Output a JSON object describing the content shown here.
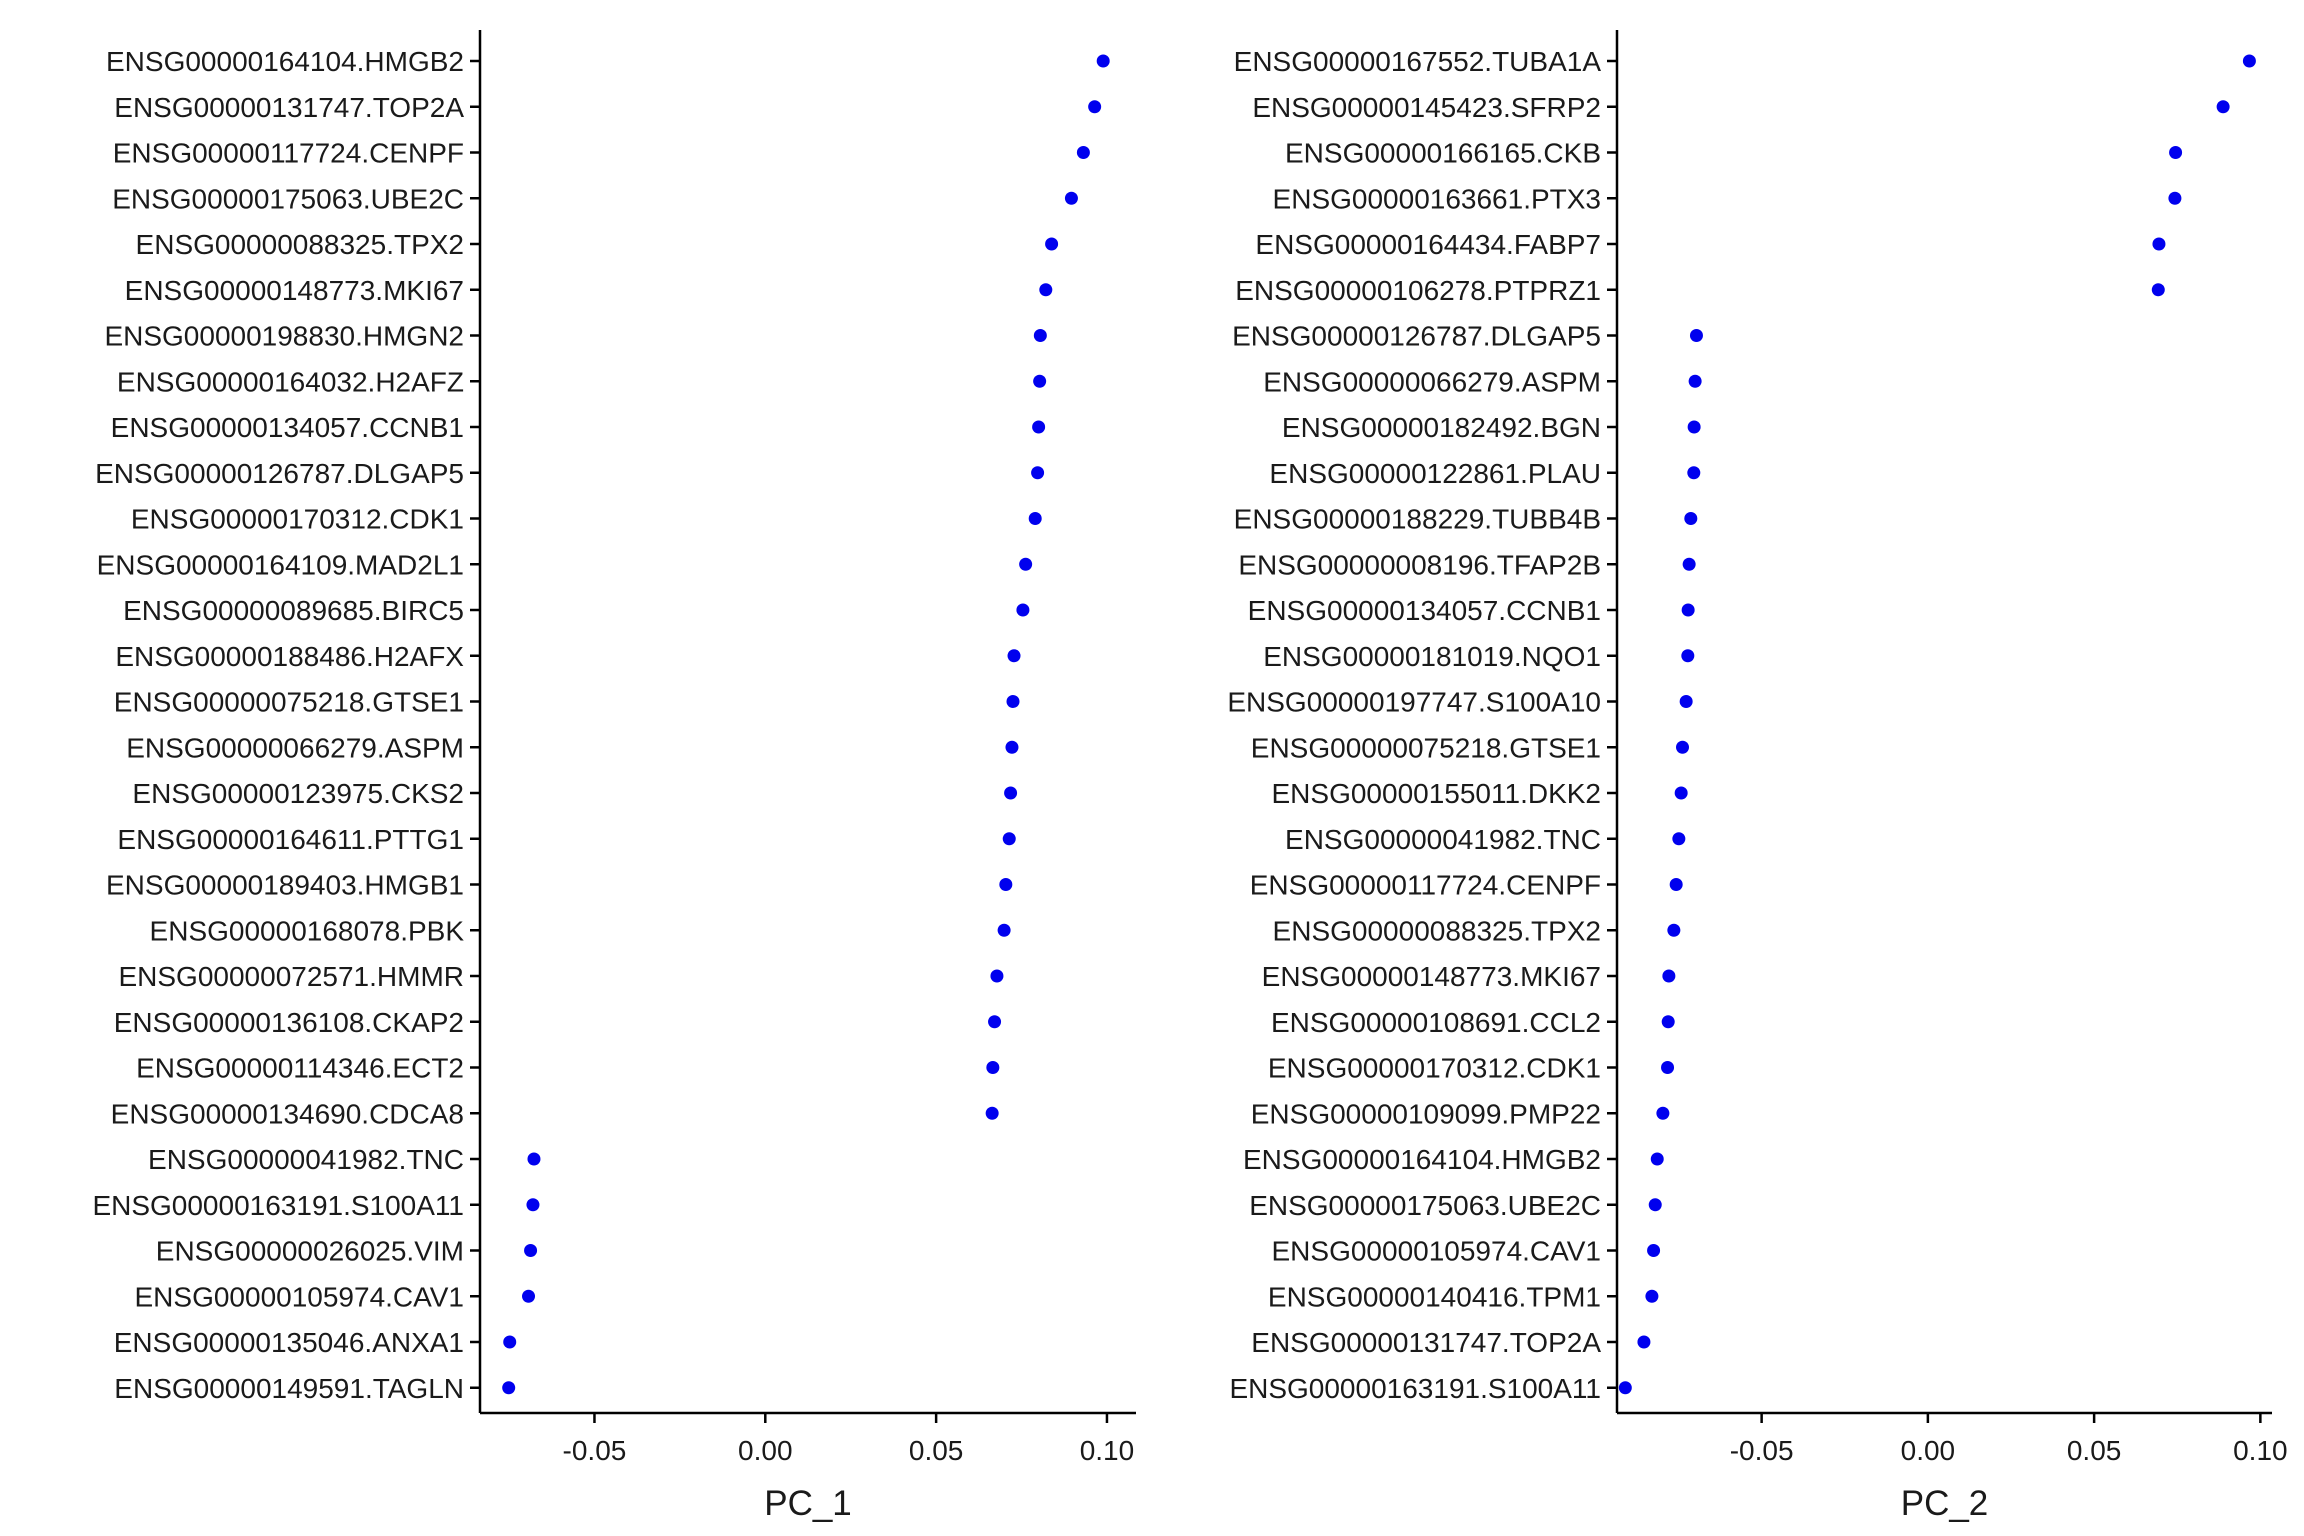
{
  "chart_data": [
    {
      "type": "scatter",
      "xlabel": "PC_1",
      "ylabel": "",
      "xlim": [
        -0.0835,
        0.1085
      ],
      "xticks": [
        -0.05,
        0.0,
        0.05,
        0.1
      ],
      "xtick_labels": [
        "-0.05",
        "0.00",
        "0.05",
        "0.10"
      ],
      "grid": false,
      "point_color": "#0000ee",
      "genes": [
        "ENSG00000164104.HMGB2",
        "ENSG00000131747.TOP2A",
        "ENSG00000117724.CENPF",
        "ENSG00000175063.UBE2C",
        "ENSG00000088325.TPX2",
        "ENSG00000148773.MKI67",
        "ENSG00000198830.HMGN2",
        "ENSG00000164032.H2AFZ",
        "ENSG00000134057.CCNB1",
        "ENSG00000126787.DLGAP5",
        "ENSG00000170312.CDK1",
        "ENSG00000164109.MAD2L1",
        "ENSG00000089685.BIRC5",
        "ENSG00000188486.H2AFX",
        "ENSG00000075218.GTSE1",
        "ENSG00000066279.ASPM",
        "ENSG00000123975.CKS2",
        "ENSG00000164611.PTTG1",
        "ENSG00000189403.HMGB1",
        "ENSG00000168078.PBK",
        "ENSG00000072571.HMMR",
        "ENSG00000136108.CKAP2",
        "ENSG00000114346.ECT2",
        "ENSG00000134690.CDCA8",
        "ENSG00000041982.TNC",
        "ENSG00000163191.S100A11",
        "ENSG00000026025.VIM",
        "ENSG00000105974.CAV1",
        "ENSG00000135046.ANXA1",
        "ENSG00000149591.TAGLN"
      ],
      "values": [
        0.0989,
        0.0964,
        0.0931,
        0.0896,
        0.0838,
        0.0821,
        0.0805,
        0.0803,
        0.08,
        0.0797,
        0.079,
        0.0762,
        0.0754,
        0.0728,
        0.0725,
        0.0722,
        0.0718,
        0.0714,
        0.0704,
        0.0699,
        0.0678,
        0.0671,
        0.0666,
        0.0664,
        -0.0677,
        -0.068,
        -0.0687,
        -0.0693,
        -0.0748,
        -0.0751
      ]
    },
    {
      "type": "scatter",
      "xlabel": "PC_2",
      "ylabel": "",
      "xlim": [
        -0.0935,
        0.1035
      ],
      "xticks": [
        -0.05,
        0.0,
        0.05,
        0.1
      ],
      "xtick_labels": [
        "-0.05",
        "0.00",
        "0.05",
        "0.10"
      ],
      "grid": false,
      "point_color": "#0000ee",
      "genes": [
        "ENSG00000167552.TUBA1A",
        "ENSG00000145423.SFRP2",
        "ENSG00000166165.CKB",
        "ENSG00000163661.PTX3",
        "ENSG00000164434.FABP7",
        "ENSG00000106278.PTPRZ1",
        "ENSG00000126787.DLGAP5",
        "ENSG00000066279.ASPM",
        "ENSG00000182492.BGN",
        "ENSG00000122861.PLAU",
        "ENSG00000188229.TUBB4B",
        "ENSG00000008196.TFAP2B",
        "ENSG00000134057.CCNB1",
        "ENSG00000181019.NQO1",
        "ENSG00000197747.S100A10",
        "ENSG00000075218.GTSE1",
        "ENSG00000155011.DKK2",
        "ENSG00000041982.TNC",
        "ENSG00000117724.CENPF",
        "ENSG00000088325.TPX2",
        "ENSG00000148773.MKI67",
        "ENSG00000108691.CCL2",
        "ENSG00000170312.CDK1",
        "ENSG00000109099.PMP22",
        "ENSG00000164104.HMGB2",
        "ENSG00000175063.UBE2C",
        "ENSG00000105974.CAV1",
        "ENSG00000140416.TPM1",
        "ENSG00000131747.TOP2A",
        "ENSG00000163191.S100A11"
      ],
      "values": [
        0.0967,
        0.0888,
        0.0745,
        0.0743,
        0.0695,
        0.0693,
        -0.0696,
        -0.07,
        -0.0703,
        -0.0704,
        -0.0713,
        -0.0718,
        -0.0721,
        -0.0722,
        -0.0727,
        -0.0738,
        -0.0742,
        -0.0749,
        -0.0757,
        -0.0764,
        -0.0779,
        -0.0781,
        -0.0783,
        -0.0797,
        -0.0814,
        -0.082,
        -0.0825,
        -0.083,
        -0.0854,
        -0.091
      ]
    }
  ]
}
